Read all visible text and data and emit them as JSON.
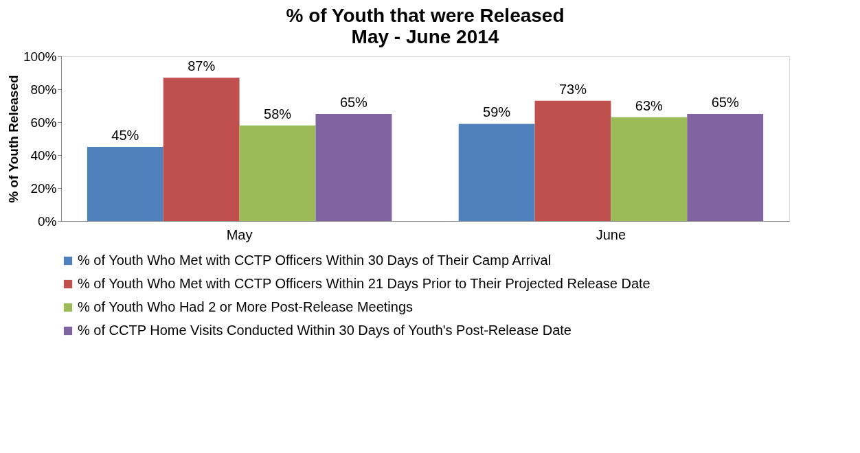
{
  "chart_data": {
    "type": "bar",
    "title": "% of Youth that were Released",
    "subtitle": "May - June 2014",
    "ylabel": "% of Youth Released",
    "categories": [
      "May",
      "June"
    ],
    "series": [
      {
        "name": "% of Youth Who Met with CCTP Officers Within 30 Days of Their Camp Arrival",
        "color": "#4f81bd",
        "values": [
          45,
          59
        ],
        "value_labels": [
          "45%",
          "59%"
        ]
      },
      {
        "name": "% of Youth Who Met with CCTP Officers Within 21 Days Prior to Their Projected Release Date",
        "color": "#c0504d",
        "values": [
          87,
          73
        ],
        "value_labels": [
          "87%",
          "73%"
        ]
      },
      {
        "name": "% of Youth Who Had 2 or More Post-Release Meetings",
        "color": "#9bbb59",
        "values": [
          58,
          63
        ],
        "value_labels": [
          "58%",
          "63%"
        ]
      },
      {
        "name": "% of CCTP Home Visits Conducted Within 30 Days of Youth's Post-Release Date",
        "color": "#8064a2",
        "values": [
          65,
          65
        ],
        "value_labels": [
          "65%",
          "65%"
        ]
      }
    ],
    "ylim": [
      0,
      100
    ],
    "yticks": [
      {
        "value": 0,
        "label": "0%"
      },
      {
        "value": 20,
        "label": "20%"
      },
      {
        "value": 40,
        "label": "40%"
      },
      {
        "value": 60,
        "label": "60%"
      },
      {
        "value": 80,
        "label": "80%"
      },
      {
        "value": 100,
        "label": "100%"
      }
    ],
    "grid": false,
    "legend": "bottom"
  }
}
